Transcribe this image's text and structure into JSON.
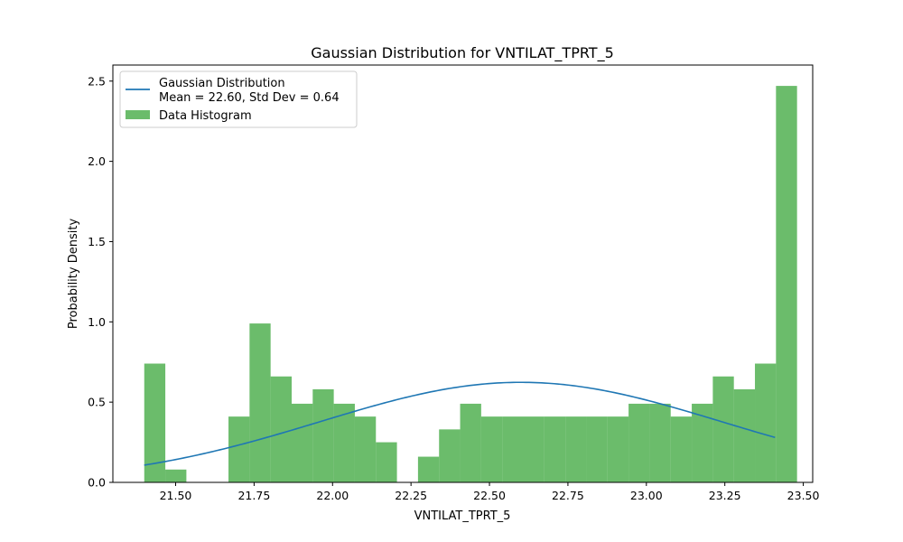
{
  "chart_data": {
    "type": "bar",
    "title": "Gaussian Distribution for VNTILAT_TPRT_5",
    "xlabel": "VNTILAT_TPRT_5",
    "ylabel": "Probability Density",
    "xlim": [
      21.3,
      23.53
    ],
    "ylim": [
      0,
      2.6
    ],
    "x_ticks": [
      21.5,
      21.75,
      22.0,
      22.25,
      22.5,
      22.75,
      23.0,
      23.25,
      23.5
    ],
    "x_tick_labels": [
      "21.50",
      "21.75",
      "22.00",
      "22.25",
      "22.50",
      "22.75",
      "23.00",
      "23.25",
      "23.50"
    ],
    "y_ticks": [
      0,
      0.5,
      1.0,
      1.5,
      2.0,
      2.5
    ],
    "y_tick_labels": [
      "0.0",
      "0.5",
      "1.0",
      "1.5",
      "2.0",
      "2.5"
    ],
    "histogram": {
      "name": "Data Histogram",
      "color": "#2ca02c",
      "bin_start": 21.4,
      "bin_width": 0.0671,
      "values": [
        0.74,
        0.08,
        0,
        0,
        0.41,
        0.99,
        0.66,
        0.49,
        0.58,
        0.49,
        0.41,
        0.25,
        0,
        0.16,
        0.33,
        0.49,
        0.41,
        0.41,
        0.41,
        0.41,
        0.41,
        0.41,
        0.41,
        0.49,
        0.49,
        0.41,
        0.49,
        0.66,
        0.58,
        0.74,
        2.47
      ]
    },
    "gaussian": {
      "name_line1": "Gaussian Distribution",
      "name_line2": "Mean = 22.60, Std Dev = 0.64",
      "mean": 22.6,
      "std": 0.64,
      "x_range": [
        21.4,
        23.41
      ],
      "color": "#1f77b4"
    },
    "legend_position": "top-left",
    "grid": false
  }
}
